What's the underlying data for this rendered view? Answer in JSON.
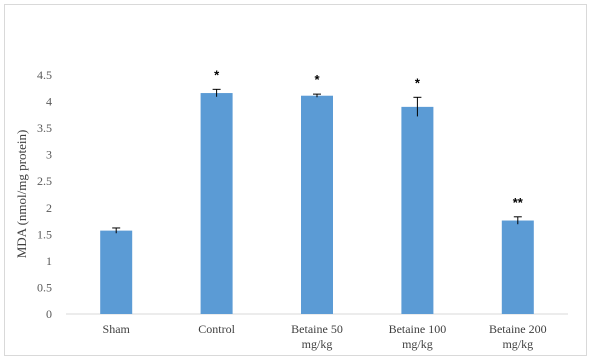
{
  "chart_data": {
    "type": "bar",
    "title": "",
    "xlabel": "",
    "ylabel": "MDA (nmol/mg protein)",
    "ylim": [
      0,
      4.5
    ],
    "yticks": [
      "0",
      "0.5",
      "1",
      "1.5",
      "2",
      "2.5",
      "3",
      "3.5",
      "4",
      "4.5"
    ],
    "grid": false,
    "bar_color": "#5b9bd5",
    "categories": [
      [
        "Sham"
      ],
      [
        "Control"
      ],
      [
        "Betaine 50",
        "mg/kg"
      ],
      [
        "Betaine 100",
        "mg/kg"
      ],
      [
        "Betaine 200",
        "mg/kg"
      ]
    ],
    "values": [
      1.57,
      4.16,
      4.11,
      3.9,
      1.76
    ],
    "errors": [
      0.05,
      0.07,
      0.03,
      0.18,
      0.07
    ],
    "significance": [
      "",
      "*",
      "*",
      "*",
      "**"
    ]
  }
}
